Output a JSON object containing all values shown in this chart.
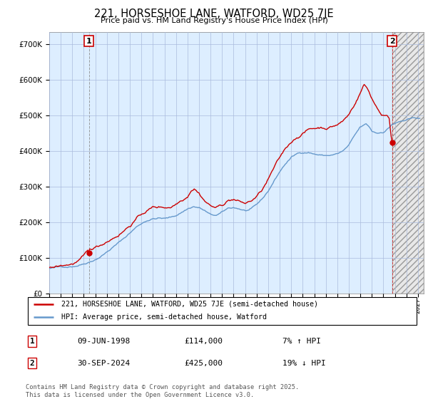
{
  "title": "221, HORSESHOE LANE, WATFORD, WD25 7JE",
  "subtitle": "Price paid vs. HM Land Registry's House Price Index (HPI)",
  "yticks": [
    0,
    100000,
    200000,
    300000,
    400000,
    500000,
    600000,
    700000
  ],
  "ylim": [
    0,
    735000
  ],
  "xlim_start": 1995.0,
  "xlim_end": 2027.5,
  "sale1_date": 1998.44,
  "sale1_price": 114000,
  "sale1_label": "1",
  "sale2_date": 2024.75,
  "sale2_price": 425000,
  "sale2_label": "2",
  "line1_color": "#cc0000",
  "line2_color": "#6699cc",
  "fill_color": "#ddeeff",
  "label1": "221, HORSESHOE LANE, WATFORD, WD25 7JE (semi-detached house)",
  "label2": "HPI: Average price, semi-detached house, Watford",
  "annotation1_date": "09-JUN-1998",
  "annotation1_price": "£114,000",
  "annotation1_hpi": "7% ↑ HPI",
  "annotation2_date": "30-SEP-2024",
  "annotation2_price": "£425,000",
  "annotation2_hpi": "19% ↓ HPI",
  "footer": "Contains HM Land Registry data © Crown copyright and database right 2025.\nThis data is licensed under the Open Government Licence v3.0.",
  "background_color": "#ffffff",
  "chart_bg_color": "#ddeeff",
  "grid_color": "#aabbcc"
}
